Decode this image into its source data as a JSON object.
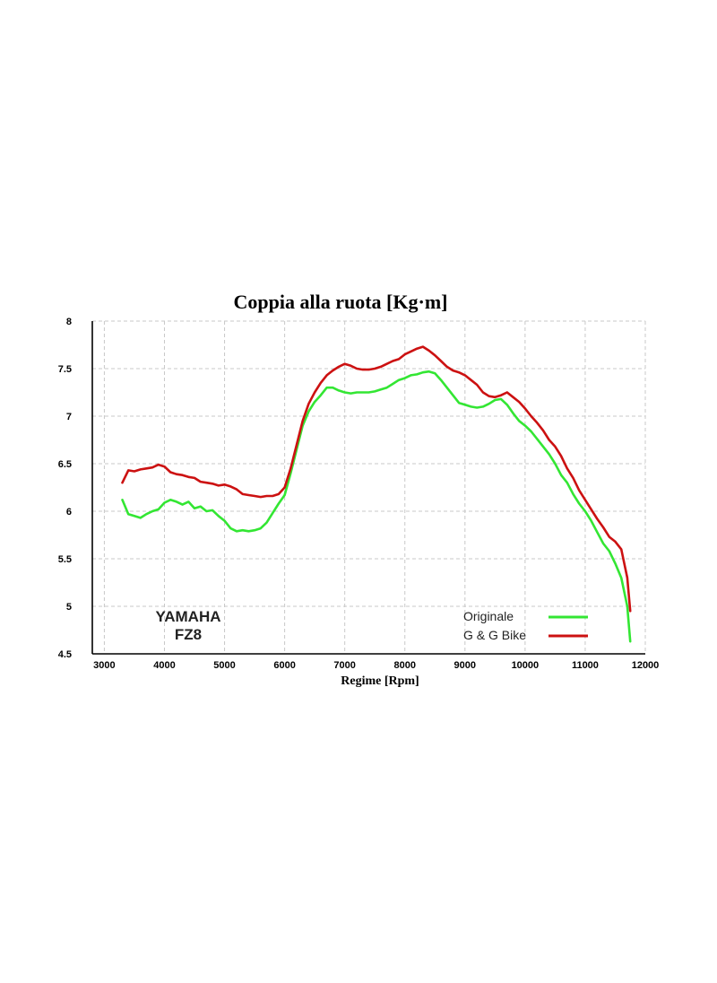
{
  "chart_data": {
    "type": "line",
    "title": "Coppia alla ruota [Kg·m]",
    "xlabel": "Regime [Rpm]",
    "ylabel": "",
    "xlim": [
      2800,
      12000
    ],
    "ylim": [
      4.5,
      8
    ],
    "xticks": [
      3000,
      4000,
      5000,
      6000,
      7000,
      8000,
      9000,
      10000,
      11000,
      12000
    ],
    "yticks": [
      4.5,
      5,
      5.5,
      6,
      6.5,
      7,
      7.5,
      8
    ],
    "xtick_labels": [
      "3000",
      "4000",
      "5000",
      "6000",
      "7000",
      "8000",
      "9000",
      "10000",
      "11000",
      "12000"
    ],
    "ytick_labels": [
      "4.5",
      "5",
      "5.5",
      "6",
      "6.5",
      "7",
      "7.5",
      "8"
    ],
    "grid": true,
    "legend_position": "bottom-right",
    "annotations": [
      "YAMAHA",
      "FZ8"
    ],
    "series": [
      {
        "name": "Originale",
        "color": "#33e633",
        "x": [
          3300,
          3400,
          3500,
          3600,
          3700,
          3800,
          3900,
          4000,
          4100,
          4200,
          4300,
          4400,
          4500,
          4600,
          4700,
          4800,
          4900,
          5000,
          5100,
          5200,
          5300,
          5400,
          5500,
          5600,
          5700,
          5800,
          5900,
          6000,
          6100,
          6200,
          6300,
          6400,
          6500,
          6600,
          6700,
          6800,
          6900,
          7000,
          7100,
          7200,
          7300,
          7400,
          7500,
          7600,
          7700,
          7800,
          7900,
          8000,
          8100,
          8200,
          8300,
          8400,
          8500,
          8600,
          8700,
          8800,
          8900,
          9000,
          9100,
          9200,
          9300,
          9400,
          9500,
          9600,
          9700,
          9800,
          9900,
          10000,
          10100,
          10200,
          10300,
          10400,
          10500,
          10600,
          10700,
          10800,
          10900,
          11000,
          11100,
          11200,
          11300,
          11400,
          11500,
          11600,
          11700,
          11750
        ],
        "values": [
          6.12,
          5.97,
          5.95,
          5.93,
          5.97,
          6.0,
          6.02,
          6.09,
          6.12,
          6.1,
          6.07,
          6.1,
          6.03,
          6.05,
          6.0,
          6.01,
          5.95,
          5.9,
          5.82,
          5.79,
          5.8,
          5.79,
          5.8,
          5.82,
          5.88,
          5.98,
          6.08,
          6.17,
          6.4,
          6.65,
          6.9,
          7.05,
          7.15,
          7.22,
          7.3,
          7.3,
          7.27,
          7.25,
          7.24,
          7.25,
          7.25,
          7.25,
          7.26,
          7.28,
          7.3,
          7.34,
          7.38,
          7.4,
          7.43,
          7.44,
          7.46,
          7.47,
          7.45,
          7.38,
          7.3,
          7.22,
          7.14,
          7.12,
          7.1,
          7.09,
          7.1,
          7.13,
          7.17,
          7.18,
          7.12,
          7.03,
          6.95,
          6.9,
          6.84,
          6.76,
          6.68,
          6.6,
          6.5,
          6.38,
          6.3,
          6.18,
          6.08,
          6.0,
          5.9,
          5.78,
          5.66,
          5.58,
          5.45,
          5.3,
          5.0,
          4.63
        ]
      },
      {
        "name": "G & G Bike",
        "color": "#cc1111",
        "x": [
          3300,
          3400,
          3500,
          3600,
          3700,
          3800,
          3900,
          4000,
          4100,
          4200,
          4300,
          4400,
          4500,
          4600,
          4700,
          4800,
          4900,
          5000,
          5100,
          5200,
          5300,
          5400,
          5500,
          5600,
          5700,
          5800,
          5900,
          6000,
          6100,
          6200,
          6300,
          6400,
          6500,
          6600,
          6700,
          6800,
          6900,
          7000,
          7100,
          7200,
          7300,
          7400,
          7500,
          7600,
          7700,
          7800,
          7900,
          8000,
          8100,
          8200,
          8300,
          8400,
          8500,
          8600,
          8700,
          8800,
          8900,
          9000,
          9100,
          9200,
          9300,
          9400,
          9500,
          9600,
          9700,
          9800,
          9900,
          10000,
          10100,
          10200,
          10300,
          10400,
          10500,
          10600,
          10700,
          10800,
          10900,
          11000,
          11100,
          11200,
          11300,
          11400,
          11500,
          11600,
          11700,
          11750
        ],
        "values": [
          6.3,
          6.43,
          6.42,
          6.44,
          6.45,
          6.46,
          6.49,
          6.47,
          6.41,
          6.39,
          6.38,
          6.36,
          6.35,
          6.31,
          6.3,
          6.29,
          6.27,
          6.28,
          6.26,
          6.23,
          6.18,
          6.17,
          6.16,
          6.15,
          6.16,
          6.16,
          6.18,
          6.25,
          6.45,
          6.7,
          6.95,
          7.13,
          7.25,
          7.35,
          7.43,
          7.48,
          7.52,
          7.55,
          7.53,
          7.5,
          7.49,
          7.49,
          7.5,
          7.52,
          7.55,
          7.58,
          7.6,
          7.65,
          7.68,
          7.71,
          7.73,
          7.69,
          7.64,
          7.58,
          7.52,
          7.48,
          7.46,
          7.43,
          7.38,
          7.33,
          7.25,
          7.21,
          7.2,
          7.22,
          7.25,
          7.2,
          7.15,
          7.08,
          7.0,
          6.93,
          6.85,
          6.75,
          6.68,
          6.58,
          6.45,
          6.35,
          6.22,
          6.12,
          6.02,
          5.92,
          5.83,
          5.73,
          5.68,
          5.6,
          5.3,
          4.95
        ]
      }
    ]
  }
}
